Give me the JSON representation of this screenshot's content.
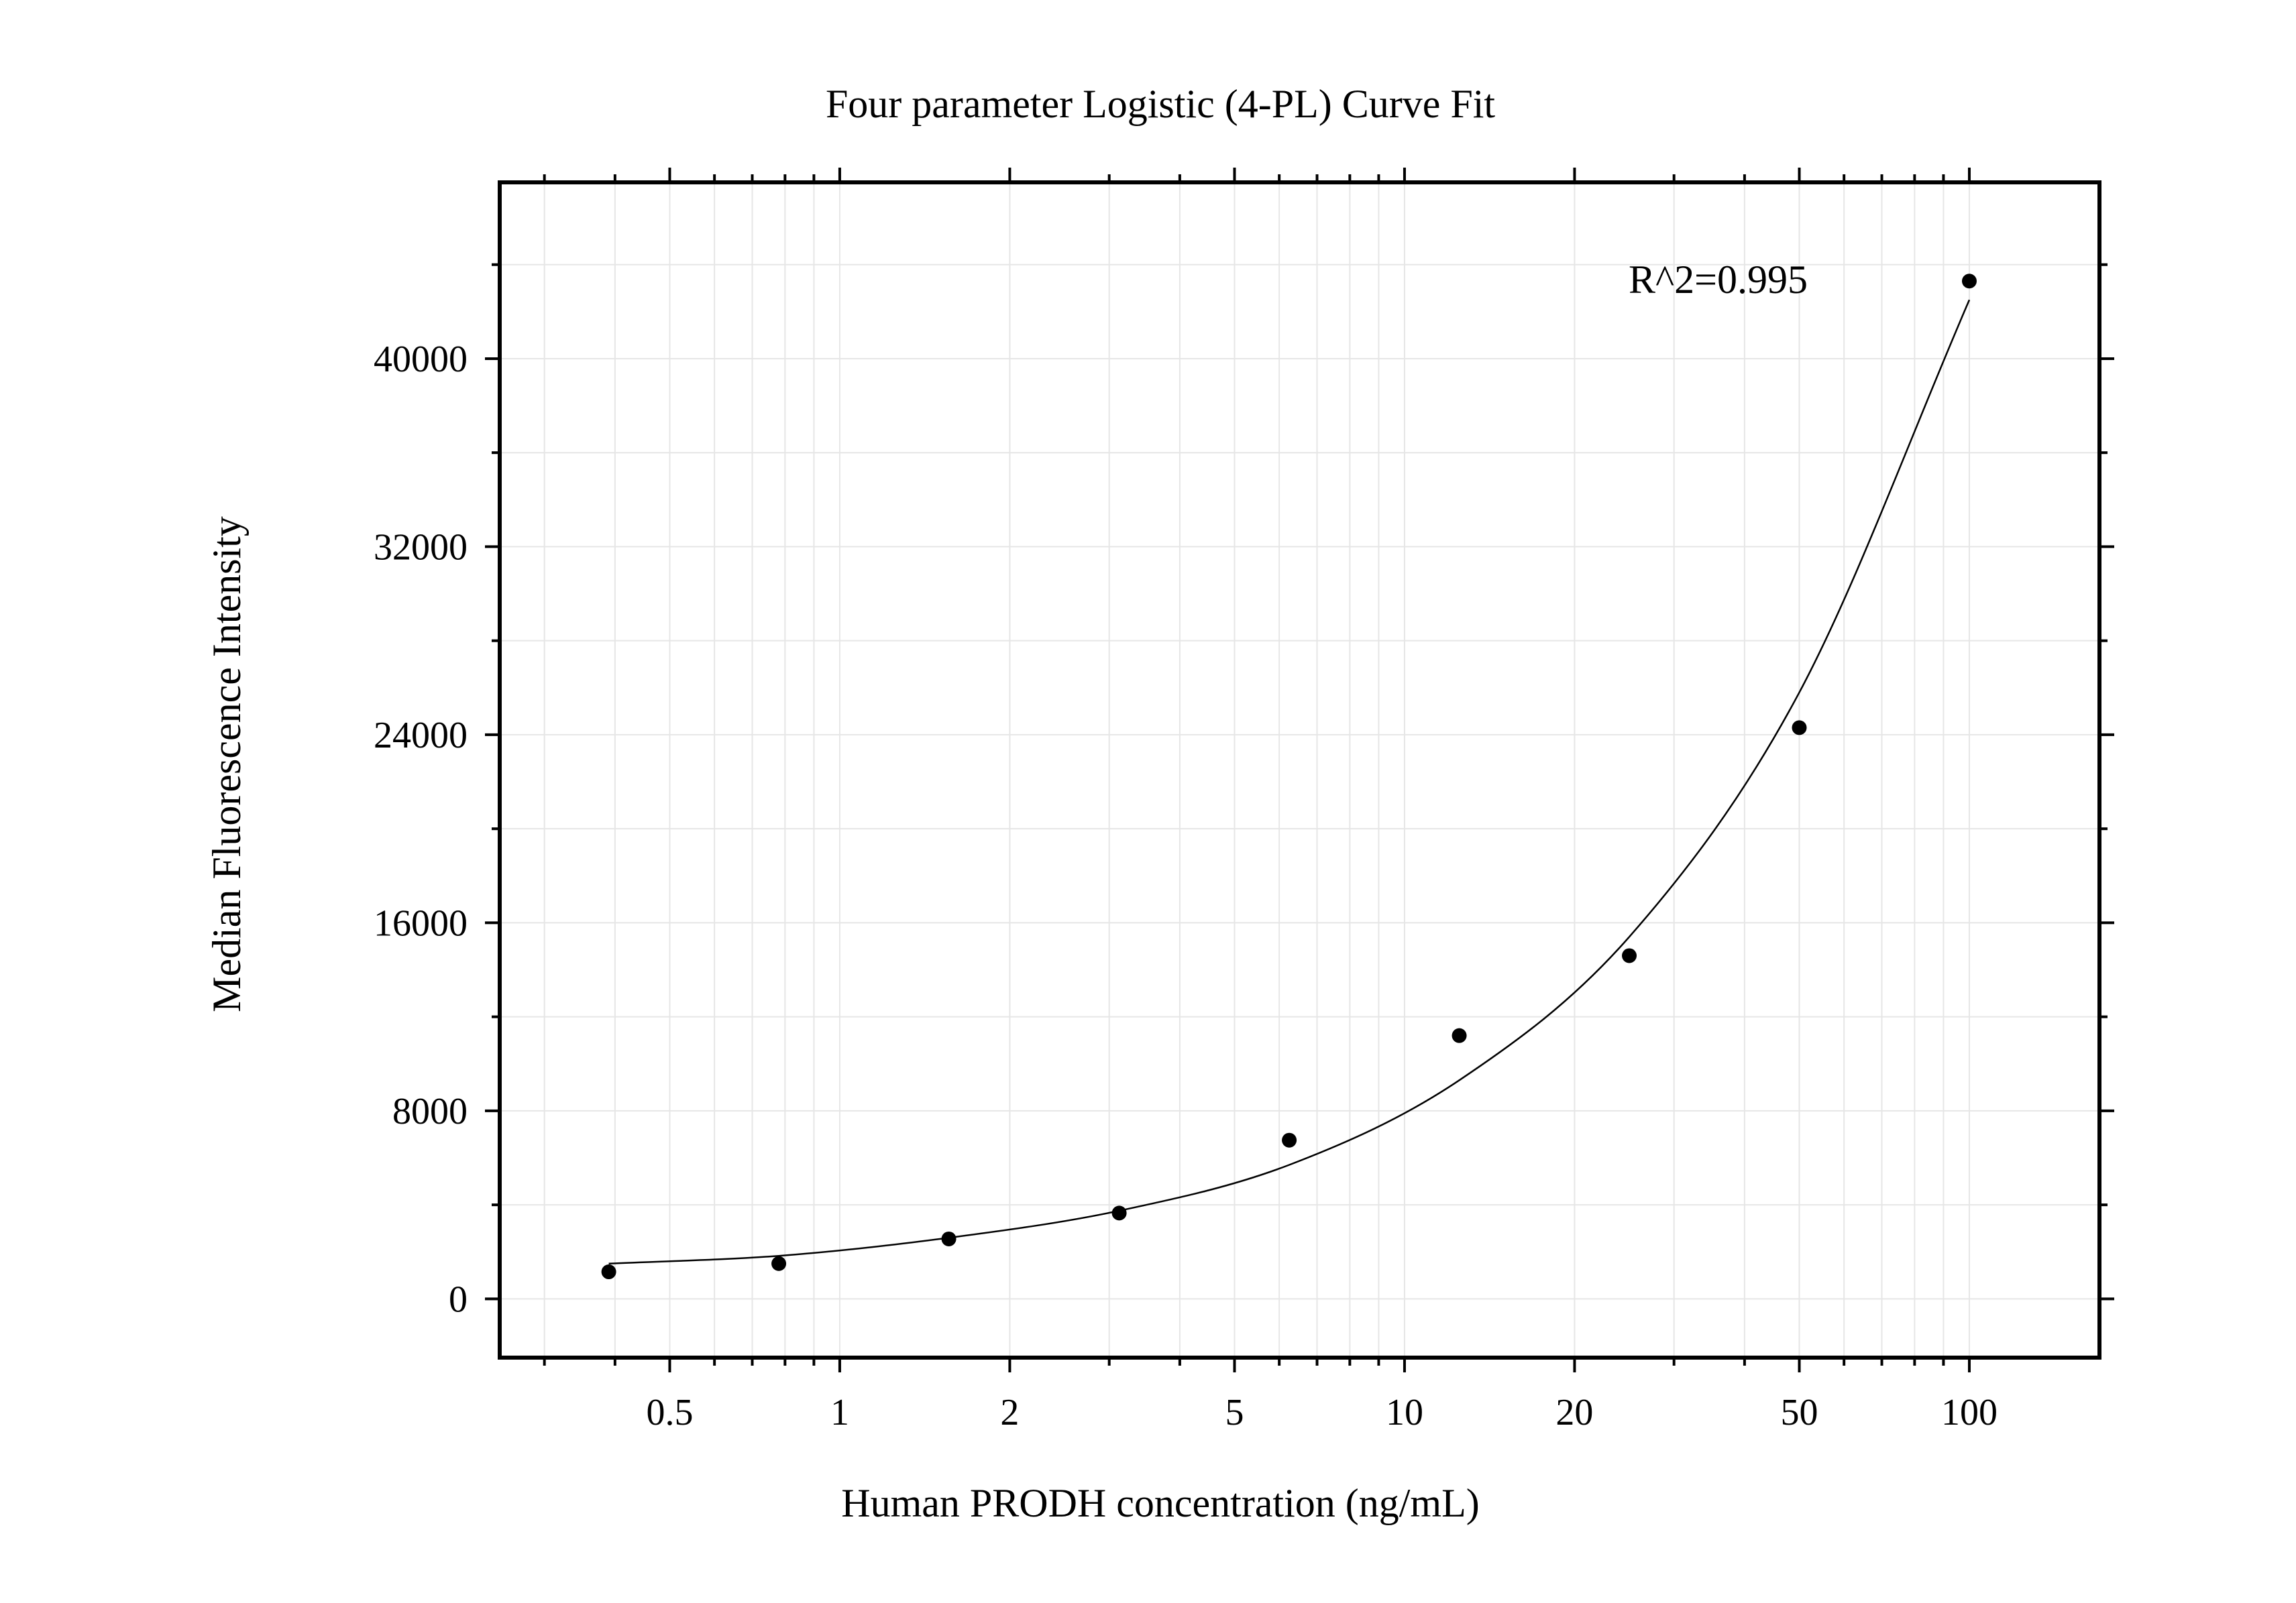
{
  "chart_data": {
    "type": "scatter",
    "title": "Four parameter Logistic (4-PL) Curve Fit",
    "xlabel": "Human PRODH concentration (ng/mL)",
    "ylabel": "Median Fluorescence Intensity",
    "annotation": "R^2=0.995",
    "x_scale": "log",
    "xlim": [
      0.25,
      170
    ],
    "ylim": [
      -2500,
      47500
    ],
    "grid": true,
    "x_ticks": [
      {
        "value": 0.5,
        "label": "0.5"
      },
      {
        "value": 1,
        "label": "1"
      },
      {
        "value": 2,
        "label": "2"
      },
      {
        "value": 5,
        "label": "5"
      },
      {
        "value": 10,
        "label": "10"
      },
      {
        "value": 20,
        "label": "20"
      },
      {
        "value": 50,
        "label": "50"
      },
      {
        "value": 100,
        "label": "100"
      }
    ],
    "y_ticks": [
      {
        "value": 0,
        "label": "0"
      },
      {
        "value": 8000,
        "label": "8000"
      },
      {
        "value": 16000,
        "label": "16000"
      },
      {
        "value": 24000,
        "label": "24000"
      },
      {
        "value": 32000,
        "label": "32000"
      },
      {
        "value": 40000,
        "label": "40000"
      }
    ],
    "y_minor_step": 4000,
    "points": [
      {
        "x": 0.39,
        "y": 1150
      },
      {
        "x": 0.78,
        "y": 1500
      },
      {
        "x": 1.56,
        "y": 2550
      },
      {
        "x": 3.125,
        "y": 3650
      },
      {
        "x": 6.25,
        "y": 6750
      },
      {
        "x": 12.5,
        "y": 11200
      },
      {
        "x": 25,
        "y": 14600
      },
      {
        "x": 50,
        "y": 24300
      },
      {
        "x": 100,
        "y": 43300
      }
    ],
    "fit": {
      "model": "4PL",
      "curve": [
        {
          "x": 0.39,
          "y": 1500
        },
        {
          "x": 0.78,
          "y": 1830
        },
        {
          "x": 1.56,
          "y": 2600
        },
        {
          "x": 3.125,
          "y": 3750
        },
        {
          "x": 6.25,
          "y": 5700
        },
        {
          "x": 12.5,
          "y": 9300
        },
        {
          "x": 25,
          "y": 15400
        },
        {
          "x": 50,
          "y": 25800
        },
        {
          "x": 100,
          "y": 42500
        }
      ]
    }
  }
}
